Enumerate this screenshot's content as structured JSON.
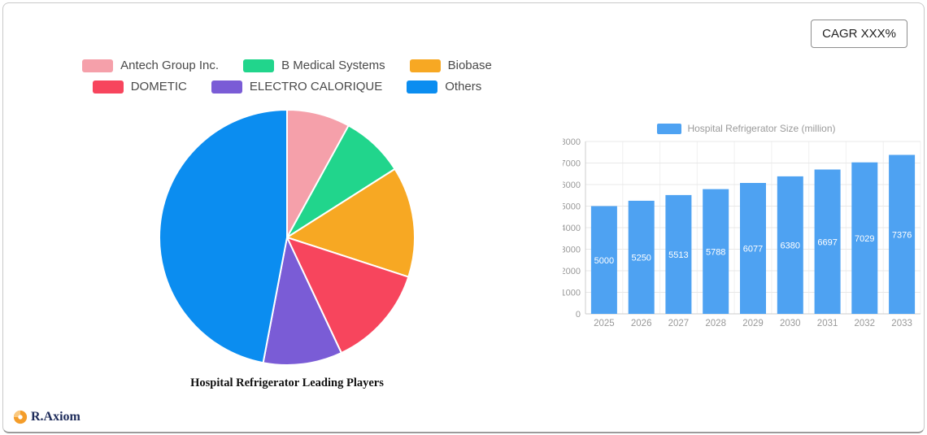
{
  "card": {
    "cagr_label": "CAGR XXX%"
  },
  "logo": {
    "text": "R.Axiom",
    "icon": "pie-chart-icon",
    "icon_color": "#F49D2A",
    "text_color": "#1D2B5A"
  },
  "chart_data": [
    {
      "type": "pie",
      "title": "Hospital Refrigerator Leading Players",
      "unit": "percent-estimated",
      "start_angle_deg": 0,
      "direction": "clockwise",
      "legend_position": "top",
      "series": [
        {
          "name": "Antech Group Inc.",
          "value": 8,
          "color": "#F5A0AA"
        },
        {
          "name": "B Medical Systems",
          "value": 8,
          "color": "#21D58C"
        },
        {
          "name": "Biobase",
          "value": 14,
          "color": "#F7A823"
        },
        {
          "name": "DOMETIC",
          "value": 13,
          "color": "#F7455D"
        },
        {
          "name": "ELECTRO CALORIQUE",
          "value": 10,
          "color": "#7A5CD6"
        },
        {
          "name": "Others",
          "value": 47,
          "color": "#0B8DF0"
        }
      ]
    },
    {
      "type": "bar",
      "legend": "Hospital Refrigerator Size (million)",
      "categories": [
        "2025",
        "2026",
        "2027",
        "2028",
        "2029",
        "2030",
        "2031",
        "2032",
        "2033"
      ],
      "values": [
        5000,
        5250,
        5513,
        5788,
        6077,
        6380,
        6697,
        7029,
        7376
      ],
      "bar_color": "#4EA2F2",
      "ylim": [
        0,
        8000
      ],
      "ytick_step": 1000,
      "grid": true,
      "value_label_position": "inside-center",
      "value_label_color": "#ffffff",
      "axis_label_color": "#999999",
      "legend_position": "top"
    }
  ]
}
